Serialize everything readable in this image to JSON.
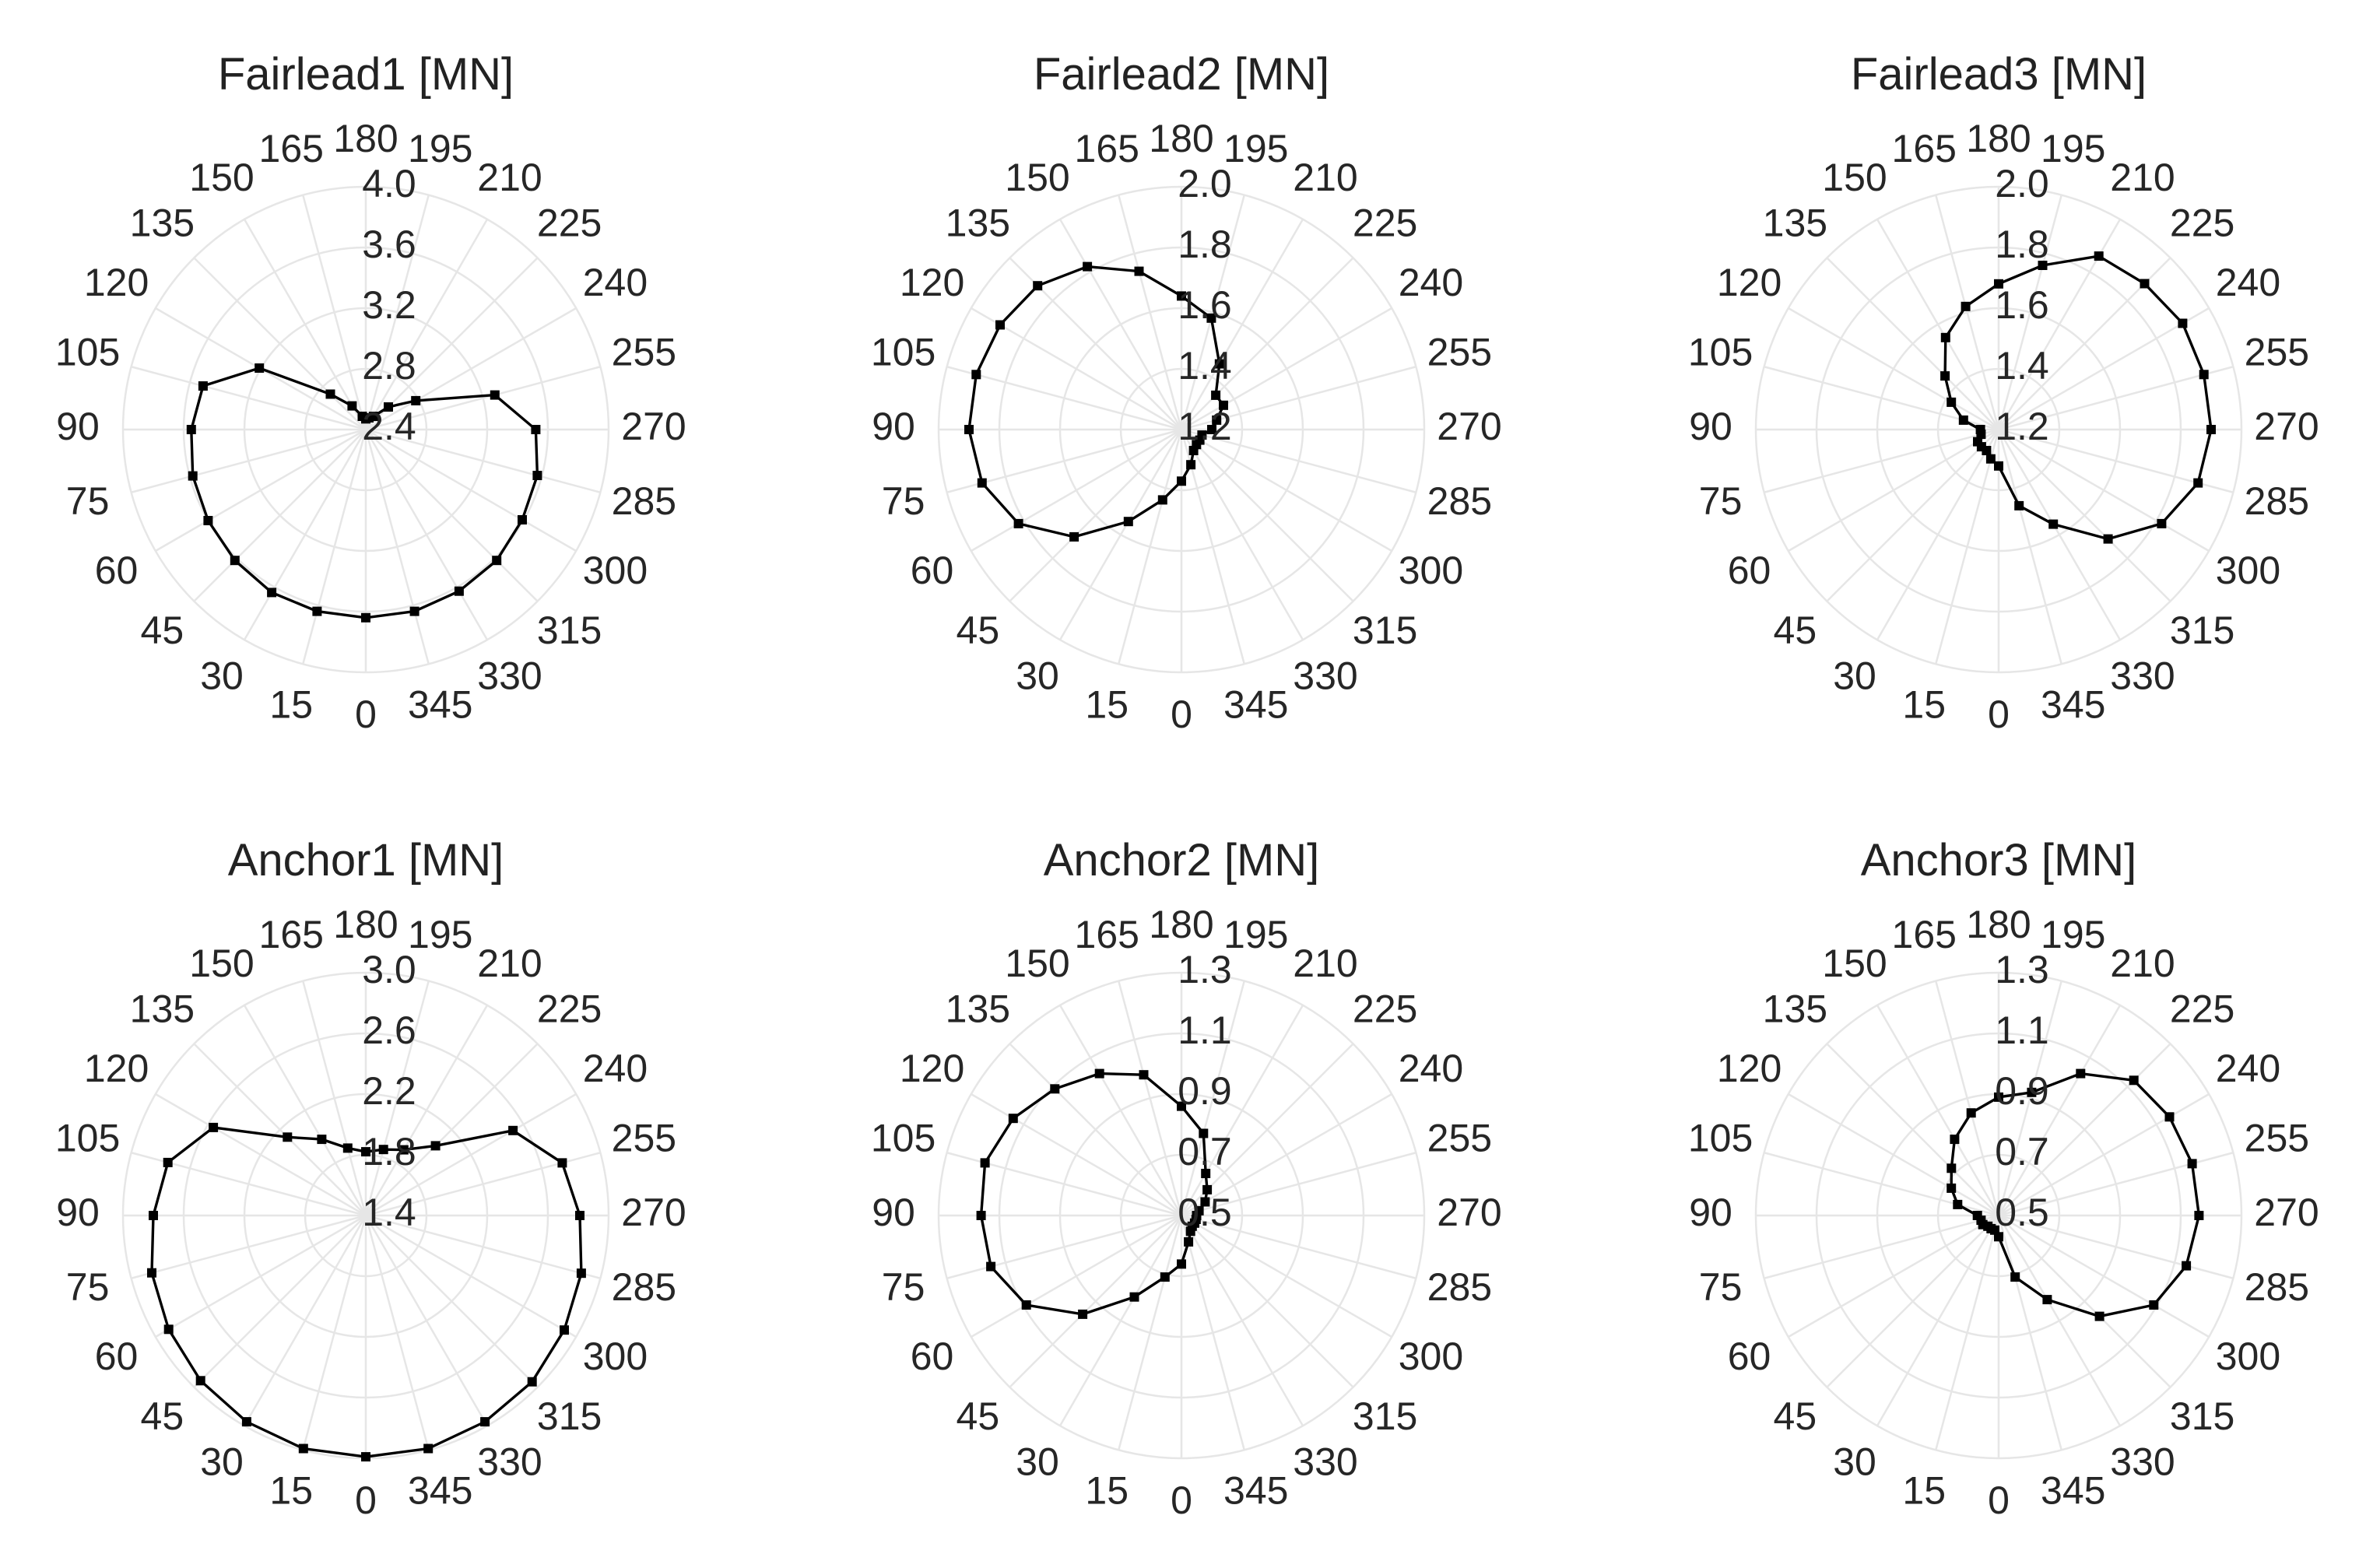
{
  "chart_data": [
    {
      "type": "line",
      "projection": "polar",
      "title": "Fairlead1 [MN]",
      "theta_direction": "clockwise",
      "theta_zero": "bottom",
      "theta_tick_labels": [
        "0",
        "15",
        "30",
        "45",
        "60",
        "75",
        "90",
        "105",
        "120",
        "135",
        "150",
        "165",
        "180",
        "195",
        "210",
        "225",
        "240",
        "255",
        "270",
        "285",
        "300",
        "315",
        "330",
        "345"
      ],
      "r_ticks": [
        2.4,
        2.8,
        3.2,
        3.6,
        4.0
      ],
      "r_tick_labels": [
        "2.4",
        "2.8",
        "3.2",
        "3.6",
        "4.0"
      ],
      "rlim": [
        2.4,
        4.0
      ],
      "grid": true,
      "marker": "square",
      "series": [
        {
          "theta": [
            0,
            15,
            30,
            45,
            60,
            75,
            90,
            105,
            120,
            135,
            150,
            165,
            180,
            195,
            210,
            225,
            240,
            255,
            270,
            285,
            300,
            315,
            330,
            345
          ],
          "r": [
            3.64,
            3.64,
            3.64,
            3.62,
            3.6,
            3.58,
            3.55,
            3.51,
            3.21,
            2.73,
            2.58,
            2.49,
            2.47,
            2.48,
            2.5,
            2.61,
            2.78,
            3.28,
            3.52,
            3.57,
            3.59,
            3.62,
            3.63,
            3.64
          ]
        }
      ]
    },
    {
      "type": "line",
      "projection": "polar",
      "title": "Fairlead2 [MN]",
      "theta_direction": "clockwise",
      "theta_zero": "bottom",
      "theta_tick_labels": [
        "0",
        "15",
        "30",
        "45",
        "60",
        "75",
        "90",
        "105",
        "120",
        "135",
        "150",
        "165",
        "180",
        "195",
        "210",
        "225",
        "240",
        "255",
        "270",
        "285",
        "300",
        "315",
        "330",
        "345"
      ],
      "r_ticks": [
        1.2,
        1.4,
        1.6,
        1.8,
        2.0
      ],
      "r_tick_labels": [
        "1.2",
        "1.4",
        "1.6",
        "1.8",
        "2.0"
      ],
      "rlim": [
        1.2,
        2.0
      ],
      "grid": true,
      "marker": "square",
      "series": [
        {
          "theta": [
            0,
            15,
            30,
            45,
            60,
            75,
            90,
            105,
            120,
            135,
            150,
            165,
            180,
            195,
            210,
            225,
            240,
            255,
            270,
            285,
            300,
            315,
            330,
            345
          ],
          "r": [
            1.37,
            1.44,
            1.55,
            1.7,
            1.82,
            1.88,
            1.9,
            1.9,
            1.89,
            1.87,
            1.82,
            1.74,
            1.64,
            1.58,
            1.45,
            1.36,
            1.36,
            1.32,
            1.3,
            1.27,
            1.27,
            1.27,
            1.28,
            1.32
          ]
        }
      ]
    },
    {
      "type": "line",
      "projection": "polar",
      "title": "Fairlead3 [MN]",
      "theta_direction": "clockwise",
      "theta_zero": "bottom",
      "theta_tick_labels": [
        "0",
        "15",
        "30",
        "45",
        "60",
        "75",
        "90",
        "105",
        "120",
        "135",
        "150",
        "165",
        "180",
        "195",
        "210",
        "225",
        "240",
        "255",
        "270",
        "285",
        "300",
        "315",
        "330",
        "345"
      ],
      "r_ticks": [
        1.2,
        1.4,
        1.6,
        1.8,
        2.0
      ],
      "r_tick_labels": [
        "1.2",
        "1.4",
        "1.6",
        "1.8",
        "2.0"
      ],
      "rlim": [
        1.2,
        2.0
      ],
      "grid": true,
      "marker": "square",
      "series": [
        {
          "theta": [
            0,
            15,
            30,
            45,
            60,
            75,
            90,
            105,
            120,
            135,
            150,
            165,
            180,
            195,
            210,
            225,
            240,
            255,
            270,
            285,
            300,
            315,
            330,
            345
          ],
          "r": [
            1.32,
            1.3,
            1.28,
            1.28,
            1.28,
            1.26,
            1.26,
            1.32,
            1.38,
            1.45,
            1.55,
            1.62,
            1.68,
            1.76,
            1.86,
            1.88,
            1.9,
            1.9,
            1.9,
            1.88,
            1.82,
            1.71,
            1.56,
            1.46
          ]
        }
      ]
    },
    {
      "type": "line",
      "projection": "polar",
      "title": "Anchor1 [MN]",
      "theta_direction": "clockwise",
      "theta_zero": "bottom",
      "theta_tick_labels": [
        "0",
        "15",
        "30",
        "45",
        "60",
        "75",
        "90",
        "105",
        "120",
        "135",
        "150",
        "165",
        "180",
        "195",
        "210",
        "225",
        "240",
        "255",
        "270",
        "285",
        "300",
        "315",
        "330",
        "345"
      ],
      "r_ticks": [
        1.4,
        1.8,
        2.2,
        2.6,
        3.0
      ],
      "r_tick_labels": [
        "1.4",
        "1.8",
        "2.2",
        "2.6",
        "3.0"
      ],
      "rlim": [
        1.4,
        3.0
      ],
      "grid": true,
      "marker": "square",
      "series": [
        {
          "theta": [
            0,
            15,
            30,
            45,
            60,
            75,
            90,
            105,
            120,
            135,
            150,
            165,
            180,
            195,
            210,
            225,
            240,
            255,
            270,
            285,
            300,
            315,
            330,
            345
          ],
          "r": [
            2.99,
            2.99,
            2.97,
            2.94,
            2.9,
            2.86,
            2.8,
            2.75,
            2.56,
            2.13,
            1.98,
            1.86,
            1.82,
            1.85,
            1.9,
            2.05,
            2.52,
            2.74,
            2.81,
            2.87,
            2.91,
            2.95,
            2.97,
            2.99
          ]
        }
      ]
    },
    {
      "type": "line",
      "projection": "polar",
      "title": "Anchor2 [MN]",
      "theta_direction": "clockwise",
      "theta_zero": "bottom",
      "theta_tick_labels": [
        "0",
        "15",
        "30",
        "45",
        "60",
        "75",
        "90",
        "105",
        "120",
        "135",
        "150",
        "165",
        "180",
        "195",
        "210",
        "225",
        "240",
        "255",
        "270",
        "285",
        "300",
        "315",
        "330",
        "345"
      ],
      "r_ticks": [
        0.5,
        0.7,
        0.9,
        1.1,
        1.3
      ],
      "r_tick_labels": [
        "0.5",
        "0.7",
        "0.9",
        "1.1",
        "1.3"
      ],
      "rlim": [
        0.5,
        1.3
      ],
      "grid": true,
      "marker": "square",
      "series": [
        {
          "theta": [
            0,
            15,
            30,
            45,
            60,
            75,
            90,
            105,
            120,
            135,
            150,
            165,
            180,
            195,
            210,
            225,
            240,
            255,
            270,
            285,
            300,
            315,
            330,
            345
          ],
          "r": [
            0.66,
            0.71,
            0.81,
            0.96,
            1.09,
            1.15,
            1.16,
            1.17,
            1.14,
            1.09,
            1.04,
            0.98,
            0.86,
            0.78,
            0.66,
            0.62,
            0.59,
            0.56,
            0.55,
            0.55,
            0.55,
            0.55,
            0.56,
            0.59
          ]
        }
      ]
    },
    {
      "type": "line",
      "projection": "polar",
      "title": "Anchor3 [MN]",
      "theta_direction": "clockwise",
      "theta_zero": "bottom",
      "theta_tick_labels": [
        "0",
        "15",
        "30",
        "45",
        "60",
        "75",
        "90",
        "105",
        "120",
        "135",
        "150",
        "165",
        "180",
        "195",
        "210",
        "225",
        "240",
        "255",
        "270",
        "285",
        "300",
        "315",
        "330",
        "345"
      ],
      "r_ticks": [
        0.5,
        0.7,
        0.9,
        1.1,
        1.3
      ],
      "r_tick_labels": [
        "0.5",
        "0.7",
        "0.9",
        "1.1",
        "1.3"
      ],
      "rlim": [
        0.5,
        1.3
      ],
      "grid": true,
      "marker": "square",
      "series": [
        {
          "theta": [
            0,
            15,
            30,
            45,
            60,
            75,
            90,
            105,
            120,
            135,
            150,
            165,
            180,
            195,
            210,
            225,
            240,
            255,
            270,
            285,
            300,
            315,
            330,
            345
          ],
          "r": [
            0.57,
            0.55,
            0.55,
            0.55,
            0.56,
            0.56,
            0.57,
            0.64,
            0.68,
            0.72,
            0.79,
            0.85,
            0.89,
            0.92,
            1.04,
            1.13,
            1.15,
            1.16,
            1.16,
            1.14,
            1.09,
            0.97,
            0.82,
            0.71
          ]
        }
      ]
    }
  ]
}
